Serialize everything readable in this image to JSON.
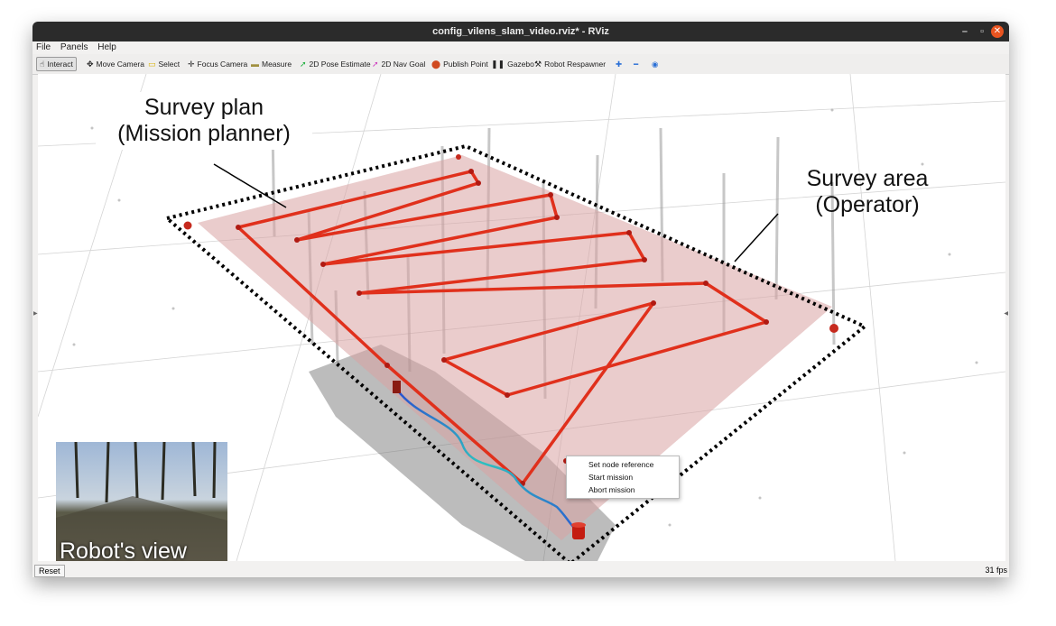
{
  "window": {
    "title": "config_vilens_slam_video.rviz* - RViz",
    "minimize": "–",
    "maximize": "▫",
    "close": "✕"
  },
  "menu": [
    "File",
    "Panels",
    "Help"
  ],
  "toolbar": {
    "interact": "Interact",
    "move_camera": "Move Camera",
    "select": "Select",
    "focus_camera": "Focus Camera",
    "measure": "Measure",
    "pose_estimate": "2D Pose Estimate",
    "nav_goal": "2D Nav Goal",
    "publish_point": "Publish Point",
    "gazebo": "Gazebo",
    "robot_respawner": "Robot Respawner"
  },
  "annotations": {
    "plan_line1": "Survey plan",
    "plan_line2": "(Mission planner)",
    "area_line1": "Survey area",
    "area_line2": "(Operator)",
    "robot_view": "Robot's view"
  },
  "context_menu": [
    "Set node reference",
    "Start mission",
    "Abort mission"
  ],
  "status": {
    "reset": "Reset",
    "fps": "31 fps"
  },
  "colors": {
    "path": "#e0301c",
    "area": "#d9a3a3",
    "trajectory": "#3aa0d8"
  }
}
